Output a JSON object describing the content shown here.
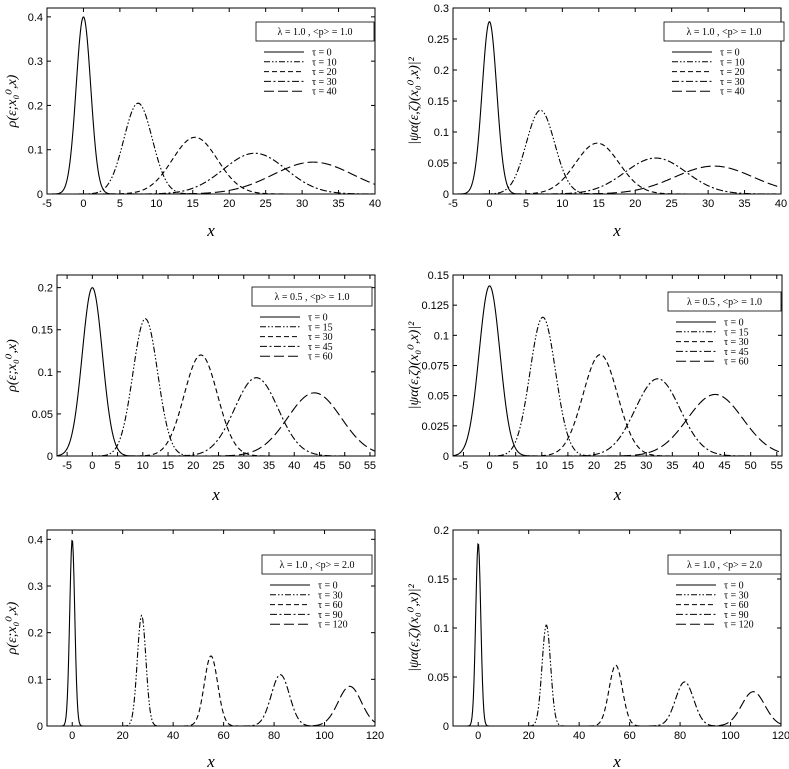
{
  "chart_data": [
    {
      "type": "line",
      "ylabel": "ρ(ε;x₀⁰,x)",
      "xlabel": "x",
      "xlim": [
        -5,
        40
      ],
      "ylim": [
        0,
        0.42
      ],
      "xticks": [
        "-5",
        "0",
        "5",
        "10",
        "15",
        "20",
        "25",
        "30",
        "35",
        "40"
      ],
      "yticks": [
        "0",
        "0.1",
        "0.2",
        "0.3",
        "0.4"
      ],
      "legend_title": "λ = 1.0 , <p> = 1.0",
      "legend_position": "top-right",
      "series": [
        {
          "name": "τ = 0",
          "dash": "solid",
          "mu": 0,
          "sigma": 1.0,
          "peak": 0.4
        },
        {
          "name": "τ = 10",
          "dash": "dash-dot-dot",
          "mu": 7.5,
          "sigma": 1.95,
          "peak": 0.205
        },
        {
          "name": "τ = 20",
          "dash": "dashed",
          "mu": 15.3,
          "sigma": 3.1,
          "peak": 0.128
        },
        {
          "name": "τ = 30",
          "dash": "dash-dot",
          "mu": 23.5,
          "sigma": 4.3,
          "peak": 0.092
        },
        {
          "name": "τ = 40",
          "dash": "long-dash",
          "mu": 31.5,
          "sigma": 5.5,
          "peak": 0.072
        }
      ]
    },
    {
      "type": "line",
      "ylabel": "|ψα(ε,ζ)(x₀⁰,x)|²",
      "xlabel": "x",
      "xlim": [
        -5,
        40
      ],
      "ylim": [
        0,
        0.3
      ],
      "xticks": [
        "-5",
        "0",
        "5",
        "10",
        "15",
        "20",
        "25",
        "30",
        "35",
        "40"
      ],
      "yticks": [
        "0",
        "0.05",
        "0.1",
        "0.15",
        "0.2",
        "0.25",
        "0.3"
      ],
      "legend_title": "λ = 1.0 , <p> = 1.0",
      "legend_position": "top-right",
      "series": [
        {
          "name": "τ = 0",
          "dash": "solid",
          "mu": 0,
          "sigma": 1.0,
          "peak": 0.278
        },
        {
          "name": "τ = 10",
          "dash": "dash-dot-dot",
          "mu": 7.0,
          "sigma": 1.95,
          "peak": 0.135
        },
        {
          "name": "τ = 20",
          "dash": "dashed",
          "mu": 14.8,
          "sigma": 3.0,
          "peak": 0.082
        },
        {
          "name": "τ = 30",
          "dash": "dash-dot",
          "mu": 22.8,
          "sigma": 4.2,
          "peak": 0.058
        },
        {
          "name": "τ = 40",
          "dash": "long-dash",
          "mu": 30.8,
          "sigma": 5.4,
          "peak": 0.045
        }
      ]
    },
    {
      "type": "line",
      "ylabel": "ρ(ε;x₀⁰,x)",
      "xlabel": "x",
      "xlim": [
        -7,
        56
      ],
      "ylim": [
        0,
        0.215
      ],
      "xticks": [
        "-5",
        "0",
        "5",
        "10",
        "15",
        "20",
        "25",
        "30",
        "35",
        "40",
        "45",
        "50",
        "55"
      ],
      "yticks": [
        "0",
        "0.05",
        "0.1",
        "0.15",
        "0.2"
      ],
      "legend_title": "λ = 0.5 ,  <p> = 1.0",
      "legend_position": "top-right",
      "series": [
        {
          "name": "τ = 0",
          "dash": "solid",
          "mu": 0,
          "sigma": 2.0,
          "peak": 0.2
        },
        {
          "name": "τ = 15",
          "dash": "dash-dot-dot",
          "mu": 10.5,
          "sigma": 2.45,
          "peak": 0.163
        },
        {
          "name": "τ = 30",
          "dash": "dashed",
          "mu": 21.5,
          "sigma": 3.3,
          "peak": 0.12
        },
        {
          "name": "τ = 45",
          "dash": "dash-dot",
          "mu": 32.5,
          "sigma": 4.3,
          "peak": 0.093
        },
        {
          "name": "τ = 60",
          "dash": "long-dash",
          "mu": 44.0,
          "sigma": 5.3,
          "peak": 0.075
        }
      ]
    },
    {
      "type": "line",
      "ylabel": "|ψα(ε,ζ)(x₀⁰,x)|²",
      "xlabel": "x",
      "xlim": [
        -7,
        56
      ],
      "ylim": [
        0,
        0.15
      ],
      "xticks": [
        "-5",
        "0",
        "5",
        "10",
        "15",
        "20",
        "25",
        "30",
        "35",
        "40",
        "45",
        "50",
        "55"
      ],
      "yticks": [
        "0",
        "0.025",
        "0.05",
        "0.075",
        "0.1",
        "0.125",
        "0.15"
      ],
      "legend_title": "λ = 0.5 ,  <p> = 1.0",
      "legend_position": "top-right",
      "series": [
        {
          "name": "τ = 0",
          "dash": "solid",
          "mu": 0,
          "sigma": 2.0,
          "peak": 0.141
        },
        {
          "name": "τ = 15",
          "dash": "dash-dot-dot",
          "mu": 10.2,
          "sigma": 2.45,
          "peak": 0.115
        },
        {
          "name": "τ = 30",
          "dash": "dashed",
          "mu": 21.2,
          "sigma": 3.3,
          "peak": 0.084
        },
        {
          "name": "τ = 45",
          "dash": "dash-dot",
          "mu": 32.2,
          "sigma": 4.3,
          "peak": 0.064
        },
        {
          "name": "τ = 60",
          "dash": "long-dash",
          "mu": 43.2,
          "sigma": 5.3,
          "peak": 0.051
        }
      ]
    },
    {
      "type": "line",
      "ylabel": "ρ(ε;x₀⁰,x)",
      "xlabel": "x",
      "xlim": [
        -10,
        120
      ],
      "ylim": [
        0,
        0.42
      ],
      "xticks": [
        "0",
        "20",
        "40",
        "60",
        "80",
        "100",
        "120"
      ],
      "yticks": [
        "0",
        "0.1",
        "0.2",
        "0.3",
        "0.4"
      ],
      "legend_title": "λ = 1.0 , <p> = 2.0",
      "legend_position": "top-right",
      "series": [
        {
          "name": "τ = 0",
          "dash": "solid",
          "mu": 0,
          "sigma": 1.0,
          "peak": 0.4
        },
        {
          "name": "τ = 30",
          "dash": "dash-dot-dot",
          "mu": 27.5,
          "sigma": 1.7,
          "peak": 0.237
        },
        {
          "name": "τ = 60",
          "dash": "dashed",
          "mu": 55.0,
          "sigma": 2.65,
          "peak": 0.15
        },
        {
          "name": "τ = 90",
          "dash": "dash-dot",
          "mu": 82.5,
          "sigma": 3.6,
          "peak": 0.11
        },
        {
          "name": "τ = 120",
          "dash": "long-dash",
          "mu": 110.0,
          "sigma": 4.6,
          "peak": 0.085
        }
      ]
    },
    {
      "type": "line",
      "ylabel": "|ψα(ε,ζ)(x₀⁰,x)|²",
      "xlabel": "x",
      "xlim": [
        -10,
        120
      ],
      "ylim": [
        0,
        0.2
      ],
      "xticks": [
        "0",
        "20",
        "40",
        "60",
        "80",
        "100",
        "120"
      ],
      "yticks": [
        "0",
        "0.05",
        "0.1",
        "0.15",
        "0.2"
      ],
      "legend_title": "λ = 1.0 , <p> = 2.0",
      "legend_position": "top-right",
      "series": [
        {
          "name": "τ = 0",
          "dash": "solid",
          "mu": 0,
          "sigma": 1.0,
          "peak": 0.187
        },
        {
          "name": "τ = 30",
          "dash": "dash-dot-dot",
          "mu": 27.0,
          "sigma": 1.7,
          "peak": 0.103
        },
        {
          "name": "τ = 60",
          "dash": "dashed",
          "mu": 54.5,
          "sigma": 2.65,
          "peak": 0.062
        },
        {
          "name": "τ = 90",
          "dash": "dash-dot",
          "mu": 81.8,
          "sigma": 3.6,
          "peak": 0.045
        },
        {
          "name": "τ = 120",
          "dash": "long-dash",
          "mu": 109.0,
          "sigma": 4.6,
          "peak": 0.035
        }
      ]
    }
  ]
}
